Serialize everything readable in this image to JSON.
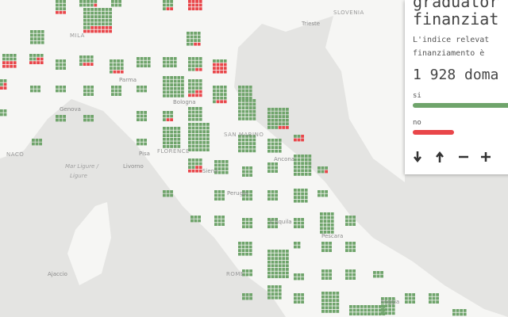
{
  "panel": {
    "title_lines": [
      "graduator",
      "finanziat"
    ],
    "description_lines": [
      "L'indice relevat",
      "finanziamento è"
    ],
    "count": "1 928 doma",
    "legend": [
      "si",
      "no"
    ]
  },
  "map_labels": [
    "SLOVENIA",
    "Trieste",
    "MILA",
    "Parma",
    "Bologna",
    "Genova",
    "FLORENCE",
    "SAN MARINO",
    "Ancona",
    "Livorno",
    "Pisa",
    "Mar Ligure /",
    "Ligure",
    "Perugia",
    "L'Aquila",
    "Pescara",
    "ROME",
    "Ajaccio",
    "Foggia",
    "NACO",
    "Siena"
  ]
}
